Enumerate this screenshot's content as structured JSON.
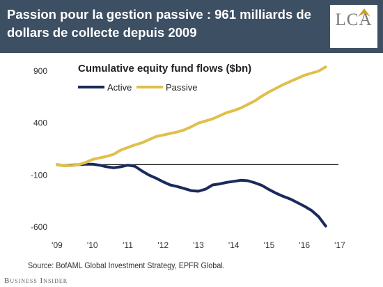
{
  "header": {
    "headline": "Passion pour la gestion passive : 961 milliards de dollars de collecte depuis 2009",
    "logo_text": "LCA",
    "background_color": "#3d4f63",
    "logo_accent_color": "#c9a227"
  },
  "footer": {
    "source": "Source: BofAML Global Investment Strategy, EPFR Global.",
    "publisher": "Business Insider"
  },
  "chart_data": {
    "type": "line",
    "title": "Cumulative equity fund flows ($bn)",
    "xlabel": "",
    "ylabel": "",
    "xlim": [
      2009,
      2017
    ],
    "ylim": [
      -600,
      900
    ],
    "x_tick_values": [
      2009,
      2010,
      2011,
      2012,
      2013,
      2014,
      2015,
      2016,
      2017
    ],
    "x_tick_labels": [
      "'09",
      "'10",
      "'11",
      "'12",
      "'13",
      "'14",
      "'15",
      "'16",
      "'17"
    ],
    "y_ticks": [
      900,
      400,
      -100,
      -600
    ],
    "zero_line": 0,
    "grid": false,
    "legend_position": "top-left",
    "series": [
      {
        "name": "Active",
        "color": "#1b2a5c",
        "x": [
          2009,
          2009.2,
          2009.4,
          2009.6,
          2009.8,
          2010,
          2010.2,
          2010.4,
          2010.6,
          2010.8,
          2011,
          2011.2,
          2011.4,
          2011.6,
          2011.8,
          2012,
          2012.2,
          2012.4,
          2012.6,
          2012.8,
          2013,
          2013.2,
          2013.4,
          2013.6,
          2013.8,
          2014,
          2014.2,
          2014.4,
          2014.6,
          2014.8,
          2015,
          2015.2,
          2015.4,
          2015.6,
          2015.8,
          2016,
          2016.2,
          2016.4,
          2016.6
        ],
        "y": [
          0,
          -10,
          -5,
          0,
          5,
          5,
          -5,
          -20,
          -30,
          -20,
          -5,
          -15,
          -60,
          -100,
          -130,
          -165,
          -195,
          -210,
          -230,
          -250,
          -255,
          -235,
          -195,
          -185,
          -170,
          -160,
          -150,
          -155,
          -175,
          -200,
          -240,
          -275,
          -305,
          -330,
          -365,
          -400,
          -440,
          -500,
          -590
        ]
      },
      {
        "name": "Passive",
        "color": "#e0bf4b",
        "x": [
          2009,
          2009.2,
          2009.4,
          2009.6,
          2009.8,
          2010,
          2010.2,
          2010.4,
          2010.6,
          2010.8,
          2011,
          2011.2,
          2011.4,
          2011.6,
          2011.8,
          2012,
          2012.2,
          2012.4,
          2012.6,
          2012.8,
          2013,
          2013.2,
          2013.4,
          2013.6,
          2013.8,
          2014,
          2014.2,
          2014.4,
          2014.6,
          2014.8,
          2015,
          2015.2,
          2015.4,
          2015.6,
          2015.8,
          2016,
          2016.2,
          2016.4,
          2016.6
        ],
        "y": [
          0,
          -10,
          -10,
          0,
          20,
          50,
          65,
          80,
          100,
          140,
          165,
          190,
          210,
          240,
          270,
          285,
          300,
          315,
          335,
          365,
          400,
          420,
          440,
          470,
          500,
          520,
          545,
          580,
          615,
          660,
          700,
          735,
          770,
          800,
          830,
          860,
          880,
          900,
          940
        ]
      }
    ]
  }
}
